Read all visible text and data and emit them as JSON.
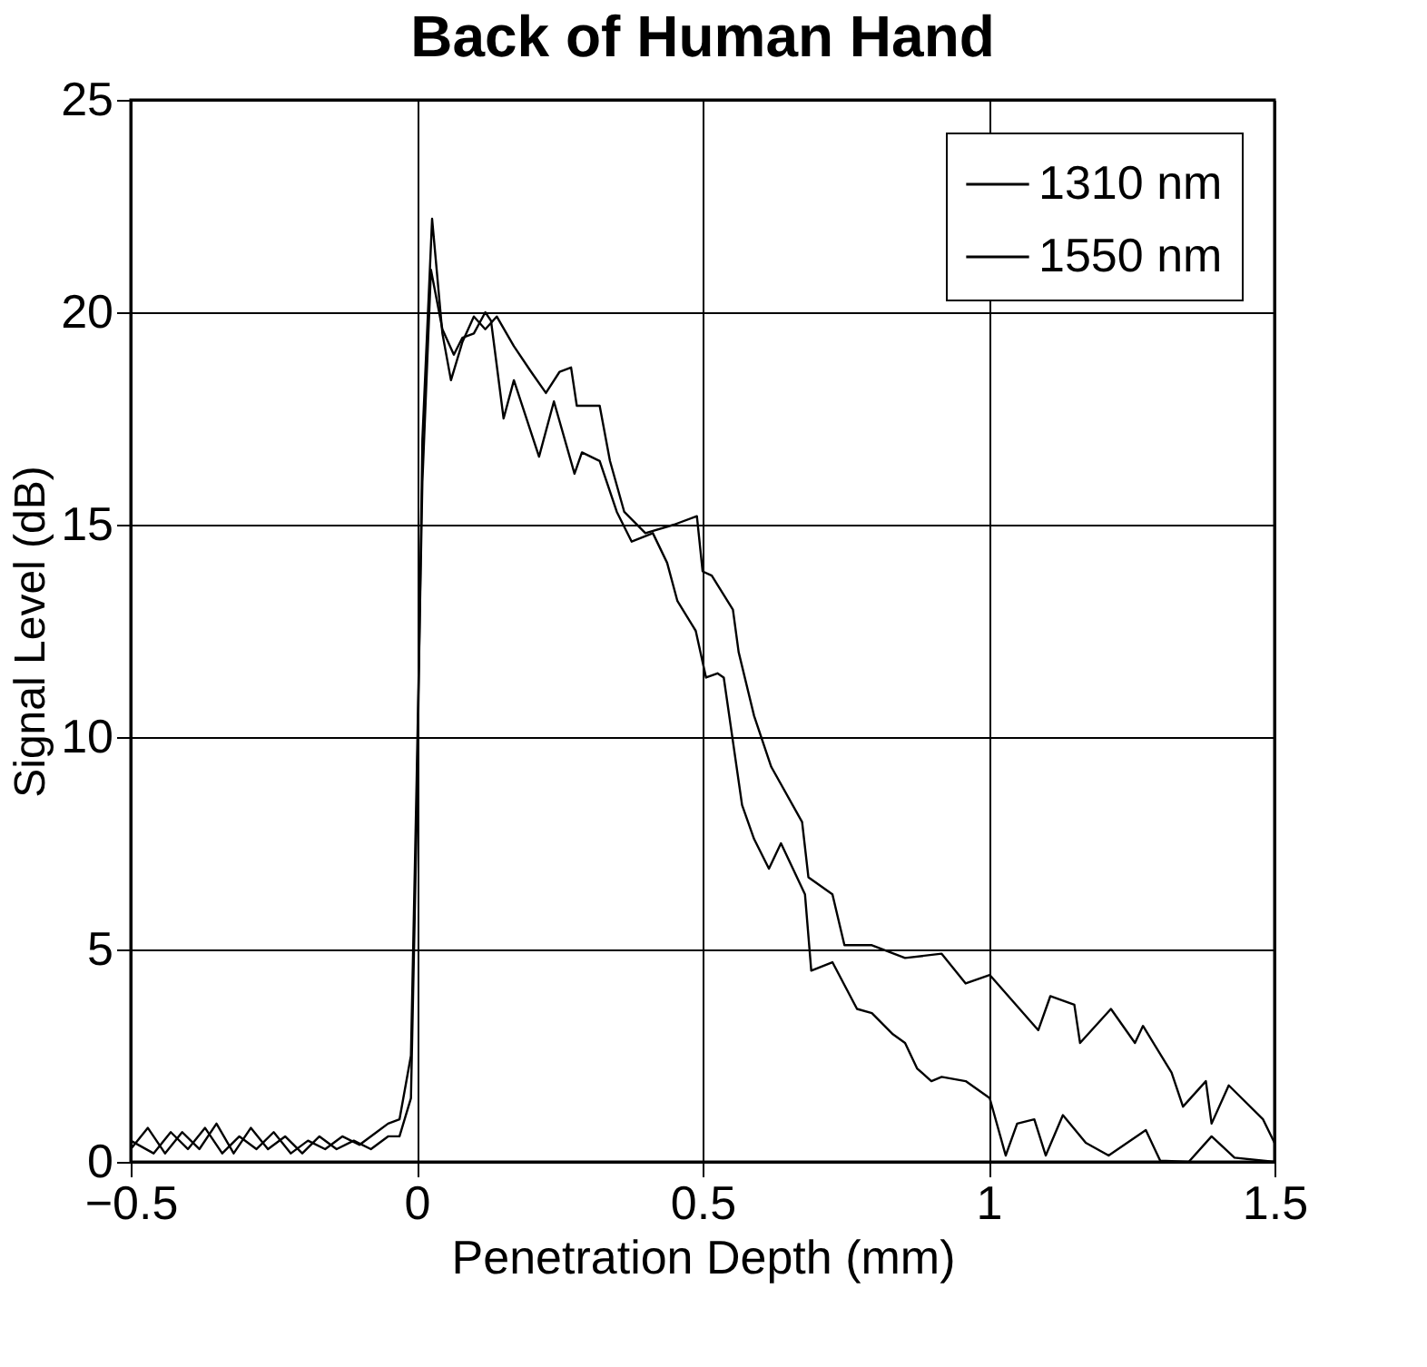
{
  "chart_data": {
    "type": "line",
    "title": "Back of Human Hand",
    "xlabel": "Penetration Depth (mm)",
    "ylabel": "Signal Level  (dB)",
    "xlim": [
      -0.5,
      1.5
    ],
    "xticks": [
      -0.5,
      0,
      0.5,
      1,
      1.5
    ],
    "ylim": [
      0,
      25
    ],
    "yticks": [
      0,
      5,
      10,
      15,
      20,
      25
    ],
    "grid": true,
    "legend": "top right",
    "line_style": "solid",
    "marker": "none",
    "series": [
      {
        "name": "1310 nm",
        "color": "#000000",
        "x": [
          -0.5,
          -0.47,
          -0.44,
          -0.41,
          -0.38,
          -0.35,
          -0.32,
          -0.29,
          -0.26,
          -0.23,
          -0.2,
          -0.17,
          -0.14,
          -0.11,
          -0.08,
          -0.05,
          -0.03,
          -0.01,
          0.0,
          0.01,
          0.027,
          0.045,
          0.06,
          0.08,
          0.1,
          0.12,
          0.14,
          0.17,
          0.2,
          0.226,
          0.25,
          0.27,
          0.28,
          0.32,
          0.338,
          0.363,
          0.4,
          0.45,
          0.49,
          0.5,
          0.516,
          0.553,
          0.563,
          0.59,
          0.62,
          0.674,
          0.685,
          0.727,
          0.748,
          0.796,
          0.854,
          0.918,
          0.96,
          1.002,
          1.087,
          1.108,
          1.15,
          1.16,
          1.214,
          1.256,
          1.27,
          1.32,
          1.34,
          1.38,
          1.39,
          1.42,
          1.48,
          1.5
        ],
        "values": [
          0.3,
          0.8,
          0.2,
          0.7,
          0.3,
          0.9,
          0.2,
          0.8,
          0.3,
          0.6,
          0.2,
          0.6,
          0.3,
          0.5,
          0.3,
          0.6,
          0.6,
          1.5,
          8,
          17,
          22.2,
          19.5,
          18.4,
          19.3,
          19.9,
          19.6,
          19.9,
          19.2,
          18.6,
          18.1,
          18.6,
          18.7,
          17.8,
          17.8,
          16.5,
          15.3,
          14.8,
          15.0,
          15.2,
          13.9,
          13.8,
          13.0,
          12.0,
          10.5,
          9.3,
          8.0,
          6.7,
          6.3,
          5.1,
          5.1,
          4.8,
          4.9,
          4.2,
          4.4,
          3.1,
          3.9,
          3.7,
          2.8,
          3.6,
          2.8,
          3.2,
          2.1,
          1.3,
          1.9,
          0.9,
          1.8,
          1.0,
          0.45
        ]
      },
      {
        "name": "1550 nm",
        "color": "#000000",
        "x": [
          -0.5,
          -0.46,
          -0.43,
          -0.4,
          -0.37,
          -0.34,
          -0.31,
          -0.28,
          -0.25,
          -0.22,
          -0.19,
          -0.16,
          -0.13,
          -0.1,
          -0.07,
          -0.05,
          -0.03,
          -0.01,
          0.0,
          0.01,
          0.025,
          0.045,
          0.065,
          0.08,
          0.1,
          0.12,
          0.13,
          0.152,
          0.17,
          0.214,
          0.24,
          0.276,
          0.289,
          0.32,
          0.35,
          0.376,
          0.413,
          0.438,
          0.456,
          0.488,
          0.506,
          0.526,
          0.537,
          0.569,
          0.59,
          0.616,
          0.637,
          0.679,
          0.69,
          0.727,
          0.77,
          0.796,
          0.833,
          0.854,
          0.875,
          0.9,
          0.918,
          0.96,
          1.002,
          1.03,
          1.05,
          1.08,
          1.1,
          1.13,
          1.17,
          1.21,
          1.275,
          1.3,
          1.35,
          1.39,
          1.43,
          1.5
        ],
        "values": [
          0.5,
          0.2,
          0.7,
          0.3,
          0.8,
          0.2,
          0.6,
          0.3,
          0.7,
          0.2,
          0.5,
          0.3,
          0.6,
          0.4,
          0.7,
          0.9,
          1.0,
          2.5,
          9,
          16,
          21.0,
          19.6,
          19.0,
          19.4,
          19.5,
          20.0,
          19.8,
          17.5,
          18.4,
          16.6,
          17.9,
          16.2,
          16.7,
          16.5,
          15.3,
          14.6,
          14.8,
          14.1,
          13.2,
          12.5,
          11.4,
          11.5,
          11.4,
          8.4,
          7.6,
          6.9,
          7.5,
          6.3,
          4.5,
          4.7,
          3.6,
          3.5,
          3.0,
          2.8,
          2.2,
          1.9,
          2.0,
          1.9,
          1.5,
          0.15,
          0.9,
          1.0,
          0.15,
          1.1,
          0.45,
          0.15,
          0.75,
          0.03,
          0,
          0.6,
          0.1,
          0
        ]
      }
    ]
  }
}
